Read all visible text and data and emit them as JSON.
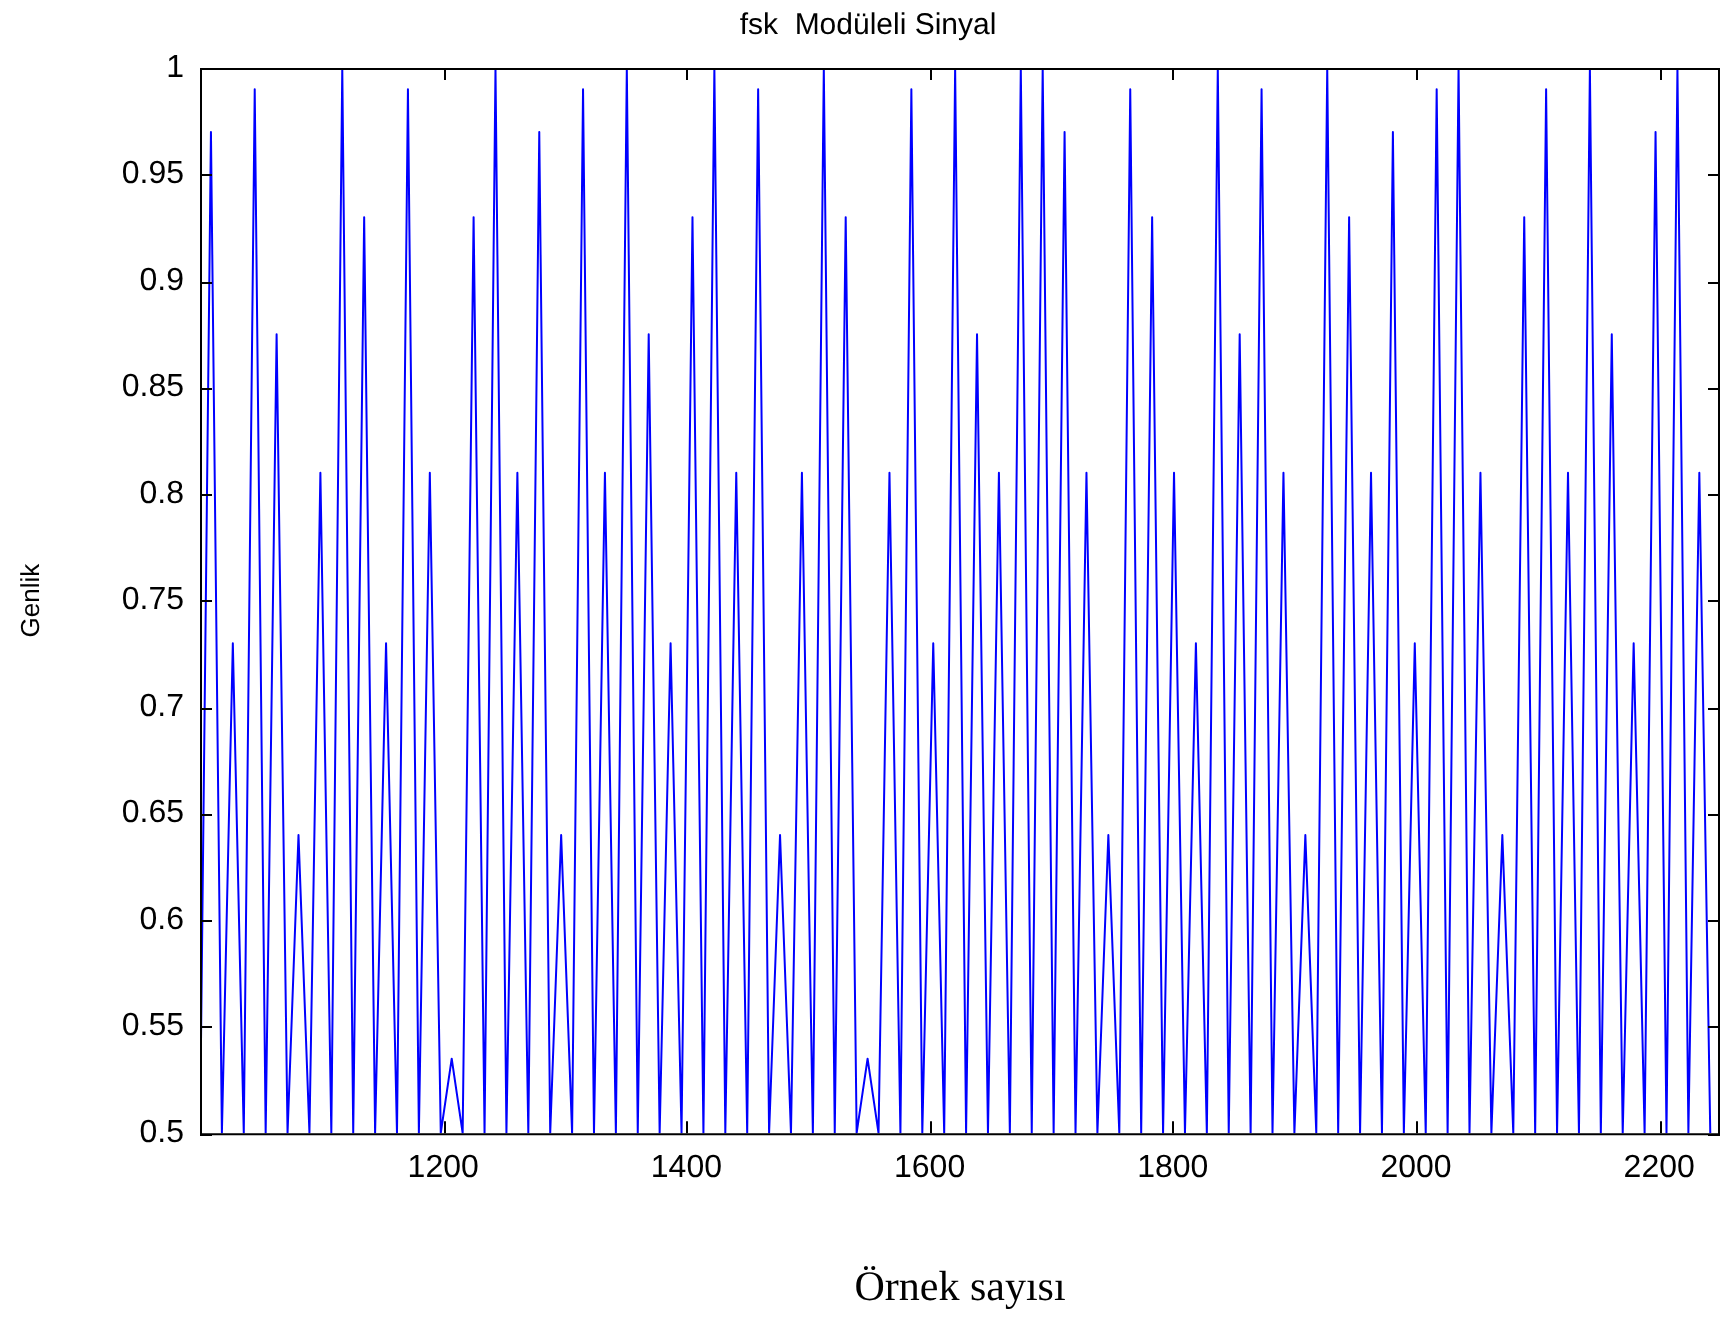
{
  "chart_data": {
    "type": "line",
    "title": "fsk  Modüleli Sinyal",
    "xlabel": "Örnek sayısı",
    "ylabel": "Genlik",
    "x": [
      1000,
      1009,
      1018,
      1027,
      1036,
      1045,
      1054,
      1063,
      1072,
      1081,
      1090,
      1099,
      1108,
      1117,
      1126,
      1135,
      1144,
      1153,
      1162,
      1171,
      1180,
      1189,
      1198,
      1207,
      1216,
      1225,
      1234,
      1243,
      1252,
      1261,
      1270,
      1279,
      1288,
      1297,
      1306,
      1315,
      1324,
      1333,
      1342,
      1351,
      1360,
      1369,
      1378,
      1387,
      1396,
      1405,
      1414,
      1423,
      1432,
      1441,
      1450,
      1459,
      1468,
      1477,
      1486,
      1495,
      1504,
      1513,
      1522,
      1531,
      1540,
      1549,
      1558,
      1567,
      1576,
      1585,
      1594,
      1603,
      1612,
      1621,
      1630,
      1639,
      1648,
      1657,
      1666,
      1675,
      1684,
      1693,
      1702,
      1711,
      1720,
      1729,
      1738,
      1747,
      1756,
      1765,
      1774,
      1783,
      1792,
      1801,
      1810,
      1819,
      1828,
      1837,
      1846,
      1855,
      1864,
      1873,
      1882,
      1891,
      1900,
      1909,
      1918,
      1927,
      1936,
      1945,
      1954,
      1963,
      1972,
      1981,
      1990,
      1999,
      2008,
      2017,
      2026,
      2035,
      2044,
      2053,
      2062,
      2071,
      2080,
      2089,
      2098,
      2107,
      2116,
      2125,
      2134,
      2143,
      2152,
      2161,
      2170,
      2179,
      2188,
      2197,
      2206,
      2215,
      2224,
      2233,
      2242
    ],
    "series": [
      {
        "color": "#0000ff",
        "values": [
          0.5,
          0.97,
          0.5,
          0.73,
          0.5,
          0.99,
          0.5,
          0.875,
          0.5,
          0.64,
          0.5,
          0.81,
          0.5,
          1,
          0.5,
          0.93,
          0.5,
          0.73,
          0.5,
          0.99,
          0.5,
          0.81,
          0.5,
          0.535,
          0.5,
          0.93,
          0.5,
          1,
          0.5,
          0.81,
          0.5,
          0.97,
          0.5,
          0.64,
          0.5,
          0.99,
          0.5,
          0.81,
          0.5,
          1,
          0.5,
          0.875,
          0.5,
          0.73,
          0.5,
          0.93,
          0.5,
          1,
          0.5,
          0.81,
          0.5,
          0.99,
          0.5,
          0.64,
          0.5,
          0.81,
          0.5,
          1,
          0.5,
          0.93,
          0.5,
          0.535,
          0.5,
          0.81,
          0.5,
          0.99,
          0.5,
          0.73,
          0.5,
          1,
          0.5,
          0.875,
          0.5,
          0.81,
          0.5,
          1,
          0.5,
          1,
          0.5,
          0.97,
          0.5,
          0.81,
          0.5,
          0.64,
          0.5,
          0.99,
          0.5,
          0.93,
          0.5,
          0.81,
          0.5,
          0.73,
          0.5,
          1,
          0.5,
          0.875,
          0.5,
          0.99,
          0.5,
          0.81,
          0.5,
          0.64,
          0.5,
          1,
          0.5,
          0.93,
          0.5,
          0.81,
          0.5,
          0.97,
          0.5,
          0.73,
          0.5,
          0.99,
          0.5,
          1,
          0.5,
          0.81,
          0.5,
          0.64,
          0.5,
          0.93,
          0.5,
          0.99,
          0.5,
          0.81,
          0.5,
          1,
          0.5,
          0.875,
          0.5,
          0.73,
          0.5,
          0.97,
          0.5,
          1,
          0.5,
          0.81,
          0.5
        ]
      }
    ],
    "xlim": [
      1000,
      2250
    ],
    "xticks": [
      1200,
      1400,
      1600,
      1800,
      2000,
      2200
    ],
    "ylim": [
      0.5,
      1
    ],
    "yticks": [
      0.5,
      0.55,
      0.6,
      0.65,
      0.7,
      0.75,
      0.8,
      0.85,
      0.9,
      0.95,
      1
    ],
    "grid": false,
    "legend": false,
    "marker": "none",
    "line_style": "solid"
  }
}
